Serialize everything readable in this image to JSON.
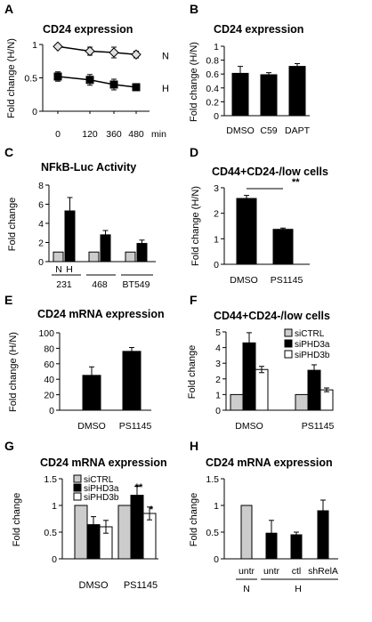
{
  "chart_data": [
    {
      "panel": "A",
      "type": "line",
      "title": "CD24 expression",
      "ylabel": "Fold change (H/N)",
      "xlabel": "min",
      "x": [
        0,
        120,
        360,
        480
      ],
      "ylim": [
        0,
        1
      ],
      "yticks": [
        "0",
        "0.5",
        "1"
      ],
      "series": [
        {
          "name": "N",
          "values": [
            0.97,
            0.9,
            0.88,
            0.85
          ],
          "errors": [
            0.03,
            0.06,
            0.08,
            0.05
          ],
          "marker": "diamond"
        },
        {
          "name": "H",
          "values": [
            0.52,
            0.47,
            0.4,
            0.36
          ],
          "errors": [
            0.07,
            0.08,
            0.08,
            0.05
          ],
          "marker": "square"
        }
      ]
    },
    {
      "panel": "B",
      "type": "bar",
      "title": "CD24 expression",
      "ylabel": "Fold change (H/N)",
      "categories": [
        "DMSO",
        "C59",
        "DAPT"
      ],
      "values": [
        0.61,
        0.59,
        0.71
      ],
      "errors": [
        0.1,
        0.03,
        0.04
      ],
      "ylim": [
        0,
        1
      ],
      "yticks": [
        "0",
        "0.2",
        "0.4",
        "0.6",
        "0.8",
        "1"
      ]
    },
    {
      "panel": "C",
      "type": "bar",
      "title": "NFkB-Luc Activity",
      "ylabel": "Fold change",
      "group_labels": [
        "231",
        "468",
        "BT549"
      ],
      "bar_labels": [
        "N",
        "H"
      ],
      "series": [
        {
          "name": "N",
          "values": [
            1,
            1,
            1
          ],
          "errors": [
            0,
            0,
            0
          ]
        },
        {
          "name": "H",
          "values": [
            5.3,
            2.8,
            1.9
          ],
          "errors": [
            1.4,
            0.45,
            0.35
          ]
        }
      ],
      "ylim": [
        0,
        8
      ],
      "yticks": [
        "0",
        "2",
        "4",
        "6",
        "8"
      ]
    },
    {
      "panel": "D",
      "type": "bar",
      "title": "CD44+CD24-/low cells",
      "ylabel": "Fold change (H/N)",
      "categories": [
        "DMSO",
        "PS1145"
      ],
      "values": [
        2.58,
        1.37
      ],
      "errors": [
        0.12,
        0.05
      ],
      "ylim": [
        0,
        3
      ],
      "yticks": [
        "0",
        "1",
        "2",
        "3"
      ],
      "significance": "**"
    },
    {
      "panel": "E",
      "type": "bar",
      "title": "CD24 mRNA expression",
      "ylabel": "Fold change (H/N)",
      "categories": [
        "DMSO",
        "PS1145"
      ],
      "values": [
        45,
        76
      ],
      "errors": [
        11,
        5
      ],
      "ylim": [
        0,
        100
      ],
      "yticks": [
        "0",
        "20",
        "40",
        "60",
        "80",
        "100"
      ]
    },
    {
      "panel": "F",
      "type": "bar",
      "title": "CD44+CD24-/low cells",
      "ylabel": "Fold change",
      "categories": [
        "DMSO",
        "PS1145"
      ],
      "series": [
        {
          "name": "siCTRL",
          "values": [
            1,
            1
          ],
          "errors": [
            0,
            0
          ]
        },
        {
          "name": "siPHD3a",
          "values": [
            4.3,
            2.55
          ],
          "errors": [
            0.65,
            0.35
          ]
        },
        {
          "name": "siPHD3b",
          "values": [
            2.6,
            1.3
          ],
          "errors": [
            0.2,
            0.12
          ]
        }
      ],
      "ylim": [
        0,
        5
      ],
      "yticks": [
        "0",
        "1",
        "2",
        "3",
        "4",
        "5"
      ],
      "legend": "top-right"
    },
    {
      "panel": "G",
      "type": "bar",
      "title": "CD24 mRNA expression",
      "ylabel": "Fold change",
      "categories": [
        "DMSO",
        "PS1145"
      ],
      "series": [
        {
          "name": "siCTRL",
          "values": [
            1,
            1
          ],
          "errors": [
            0,
            0
          ]
        },
        {
          "name": "siPHD3a",
          "values": [
            0.64,
            1.19
          ],
          "errors": [
            0.15,
            0.17
          ]
        },
        {
          "name": "siPHD3b",
          "values": [
            0.6,
            0.85
          ],
          "errors": [
            0.12,
            0.12
          ]
        }
      ],
      "ylim": [
        0,
        1.5
      ],
      "yticks": [
        "0",
        "0.5",
        "1",
        "1.5"
      ],
      "legend": "top-left",
      "significance": [
        "**",
        "*"
      ]
    },
    {
      "panel": "H",
      "type": "bar",
      "title": "CD24 mRNA expression",
      "ylabel": "Fold change",
      "categories": [
        "untr",
        "untr",
        "ctl",
        "shRelA"
      ],
      "groups": [
        "N",
        "H"
      ],
      "values": [
        1.0,
        0.48,
        0.45,
        0.9
      ],
      "errors": [
        0,
        0.24,
        0.05,
        0.2
      ],
      "colors": [
        "#cccccc",
        "#000000",
        "#000000",
        "#000000"
      ],
      "ylim": [
        0,
        1.5
      ],
      "yticks": [
        "0",
        "0.5",
        "1",
        "1.5"
      ]
    }
  ]
}
